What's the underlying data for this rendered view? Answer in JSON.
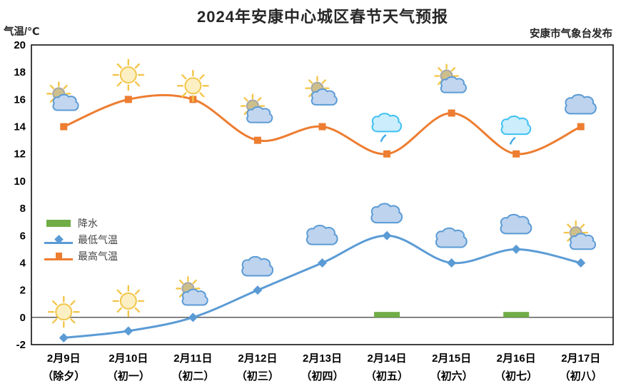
{
  "page": {
    "title": "2024年安康中心城区春节天气预报",
    "publisher": "安康市气象台发布",
    "y_axis_unit": "气温/℃"
  },
  "legend": {
    "precipitation": "降水",
    "min_temp": "最低气温",
    "max_temp": "最高气温"
  },
  "colors": {
    "max_temp_line": "#ED7D31",
    "min_temp_line": "#5B9BD5",
    "precipitation_bar": "#70AD47",
    "axis": "#000000",
    "cloud_fill": "#BDD3EE",
    "cloud_stroke": "#5B9BD5",
    "rain_cloud_fill": "#CBEDFC",
    "rain_cloud_stroke": "#3FC1F3",
    "sun_fill": "#FCEFC3",
    "sun_stroke": "#F3C64B"
  },
  "chart_data": {
    "type": "line",
    "title": "2024年安康中心城区春节天气预报",
    "xlabel": "",
    "ylabel": "气温/℃",
    "ylim": [
      -2,
      20
    ],
    "y_ticks": [
      20,
      18,
      16,
      14,
      12,
      10,
      8,
      6,
      4,
      2,
      0,
      -2
    ],
    "grid": false,
    "legend_position": "middle-left",
    "categories": [
      "2月9日",
      "2月10日",
      "2月11日",
      "2月12日",
      "2月13日",
      "2月14日",
      "2月15日",
      "2月16日",
      "2月17日"
    ],
    "categories_line2": [
      "（除夕）",
      "（初一）",
      "（初二）",
      "（初三）",
      "（初四）",
      "（初五）",
      "（初六）",
      "（初七）",
      "（初八）"
    ],
    "series": [
      {
        "name": "最高气温",
        "kind": "line",
        "marker": "square",
        "color": "#ED7D31",
        "values": [
          14,
          16,
          16,
          13,
          14,
          12,
          15,
          12,
          14
        ],
        "icons": [
          "partly-cloudy",
          "sunny",
          "sunny",
          "partly-cloudy",
          "partly-cloudy",
          "light-rain",
          "partly-cloudy",
          "light-rain",
          "cloudy"
        ],
        "icon_y": [
          16,
          17.8,
          17,
          15.1,
          16.4,
          14.1,
          17.3,
          13.9,
          15.6
        ]
      },
      {
        "name": "最低气温",
        "kind": "line",
        "marker": "diamond",
        "color": "#5B9BD5",
        "values": [
          -1.5,
          -1,
          0,
          2,
          4,
          6,
          4,
          5,
          4
        ],
        "icons": [
          "sunny",
          "sunny",
          "partly-cloudy",
          "cloudy",
          "cloudy",
          "cloudy",
          "cloudy",
          "cloudy",
          "partly-cloudy"
        ],
        "icon_y": [
          0.4,
          1.2,
          1.7,
          3.7,
          6,
          7.6,
          5.8,
          6.8,
          5.8
        ]
      },
      {
        "name": "降水",
        "kind": "bar",
        "color": "#70AD47",
        "values": [
          0,
          0,
          0,
          0,
          0,
          0.4,
          0,
          0.4,
          0
        ]
      }
    ]
  }
}
